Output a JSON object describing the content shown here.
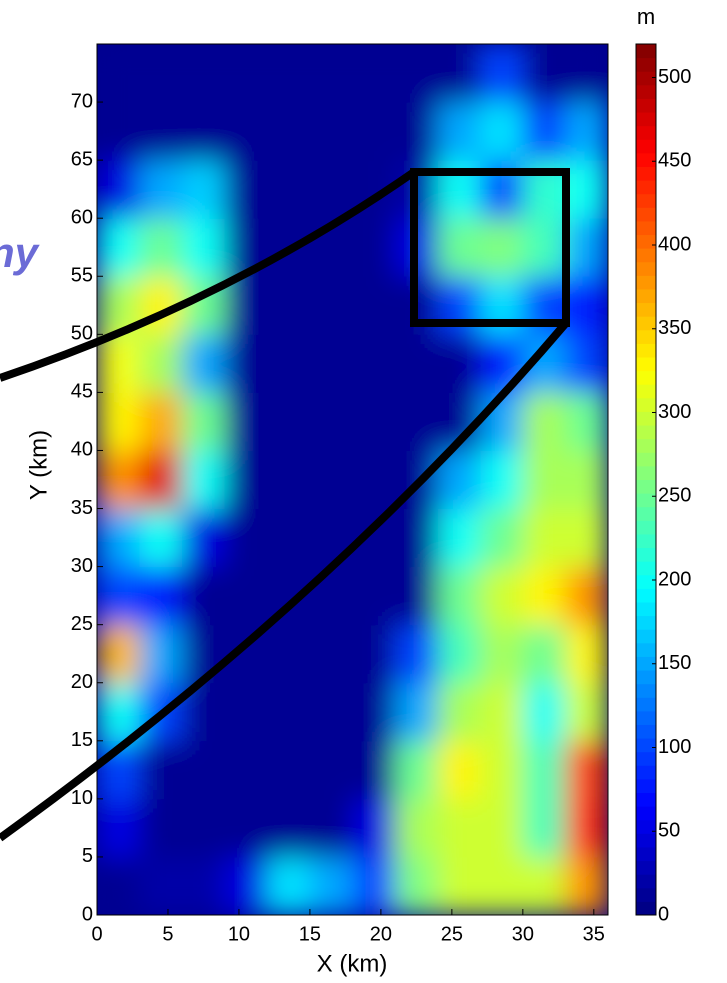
{
  "chart_data": {
    "type": "heatmap",
    "annotation": "ny",
    "xlabel": "X (km)",
    "ylabel": "Y (km)",
    "colorbar_label": "m",
    "xlim": [
      0,
      36
    ],
    "ylim": [
      0,
      75
    ],
    "clim": [
      0,
      520
    ],
    "xticks": [
      0,
      5,
      10,
      15,
      20,
      25,
      30,
      35
    ],
    "yticks": [
      0,
      5,
      10,
      15,
      20,
      25,
      30,
      35,
      40,
      45,
      50,
      55,
      60,
      65,
      70
    ],
    "cticks": [
      0,
      50,
      100,
      150,
      200,
      250,
      300,
      350,
      400,
      450,
      500
    ],
    "colormap": "jet",
    "x": [
      1.5,
      4.5,
      7.5,
      10.5,
      13.5,
      16.5,
      19.5,
      22.5,
      25.5,
      28.5,
      31.5,
      34.5
    ],
    "y": [
      2.5,
      7.5,
      12.5,
      17.5,
      22.5,
      27.5,
      32.5,
      37.5,
      42.5,
      47.5,
      52.5,
      57.5,
      62.5,
      67.5,
      72.5
    ],
    "z": [
      [
        10,
        20,
        20,
        50,
        180,
        150,
        100,
        260,
        300,
        300,
        300,
        380
      ],
      [
        50,
        10,
        10,
        10,
        10,
        10,
        50,
        280,
        300,
        300,
        230,
        430
      ],
      [
        100,
        10,
        10,
        10,
        10,
        10,
        10,
        250,
        330,
        300,
        230,
        420
      ],
      [
        200,
        100,
        10,
        10,
        10,
        10,
        10,
        150,
        280,
        300,
        200,
        300
      ],
      [
        360,
        150,
        10,
        10,
        10,
        10,
        10,
        100,
        230,
        280,
        250,
        330
      ],
      [
        100,
        80,
        10,
        10,
        10,
        10,
        10,
        10,
        250,
        300,
        330,
        380
      ],
      [
        150,
        200,
        50,
        10,
        10,
        10,
        10,
        10,
        200,
        250,
        300,
        300
      ],
      [
        380,
        470,
        200,
        10,
        10,
        10,
        10,
        10,
        150,
        200,
        280,
        280
      ],
      [
        330,
        370,
        250,
        10,
        10,
        10,
        10,
        10,
        10,
        150,
        280,
        250
      ],
      [
        320,
        280,
        150,
        10,
        10,
        10,
        10,
        10,
        10,
        80,
        150,
        100
      ],
      [
        280,
        330,
        250,
        10,
        10,
        10,
        10,
        10,
        100,
        180,
        100,
        80
      ],
      [
        200,
        250,
        200,
        10,
        10,
        10,
        10,
        50,
        250,
        260,
        230,
        150
      ],
      [
        50,
        150,
        170,
        10,
        10,
        10,
        10,
        20,
        200,
        100,
        220,
        200
      ],
      [
        10,
        10,
        10,
        10,
        10,
        10,
        10,
        10,
        150,
        180,
        100,
        150
      ],
      [
        10,
        10,
        10,
        10,
        10,
        10,
        10,
        10,
        10,
        100,
        10,
        10
      ]
    ]
  }
}
